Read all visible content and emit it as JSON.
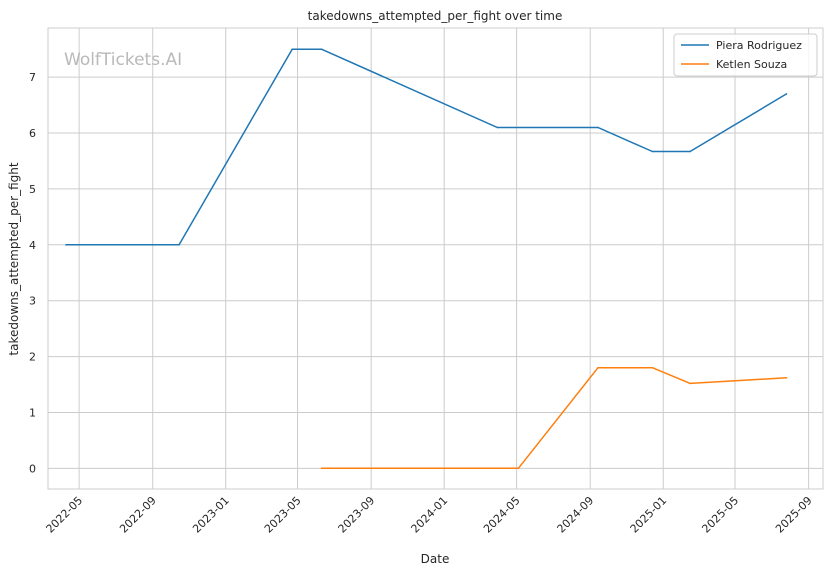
{
  "chart_data": {
    "type": "line",
    "title": "takedowns_attempted_per_fight over time",
    "xlabel": "Date",
    "ylabel": "takedowns_attempted_per_fight",
    "watermark": "WolfTickets.AI",
    "x_ticks": [
      "2022-05",
      "2022-09",
      "2023-01",
      "2023-05",
      "2023-09",
      "2024-01",
      "2024-05",
      "2024-09",
      "2025-01",
      "2025-05",
      "2025-09"
    ],
    "y_ticks": [
      "0",
      "1",
      "2",
      "3",
      "4",
      "5",
      "6",
      "7"
    ],
    "xlim": [
      "2022-03-10",
      "2025-09-25"
    ],
    "ylim": [
      -0.37,
      7.88
    ],
    "grid": true,
    "legend_position": "top-right",
    "series": [
      {
        "name": "Piera Rodriguez",
        "color": "#1f77b4",
        "points": [
          {
            "x": "2022-04-09",
            "y": 4.0
          },
          {
            "x": "2022-10-15",
            "y": 4.0
          },
          {
            "x": "2023-04-22",
            "y": 7.5
          },
          {
            "x": "2023-06-10",
            "y": 7.5
          },
          {
            "x": "2024-03-30",
            "y": 6.1
          },
          {
            "x": "2024-09-14",
            "y": 6.1
          },
          {
            "x": "2024-12-14",
            "y": 5.67
          },
          {
            "x": "2025-02-15",
            "y": 5.67
          },
          {
            "x": "2025-07-26",
            "y": 6.7
          }
        ]
      },
      {
        "name": "Ketlen Souza",
        "color": "#ff7f0e",
        "points": [
          {
            "x": "2023-06-10",
            "y": 0.0
          },
          {
            "x": "2024-05-04",
            "y": 0.0
          },
          {
            "x": "2024-09-14",
            "y": 1.8
          },
          {
            "x": "2024-12-14",
            "y": 1.8
          },
          {
            "x": "2025-02-15",
            "y": 1.52
          },
          {
            "x": "2025-07-26",
            "y": 1.62
          }
        ]
      }
    ]
  }
}
